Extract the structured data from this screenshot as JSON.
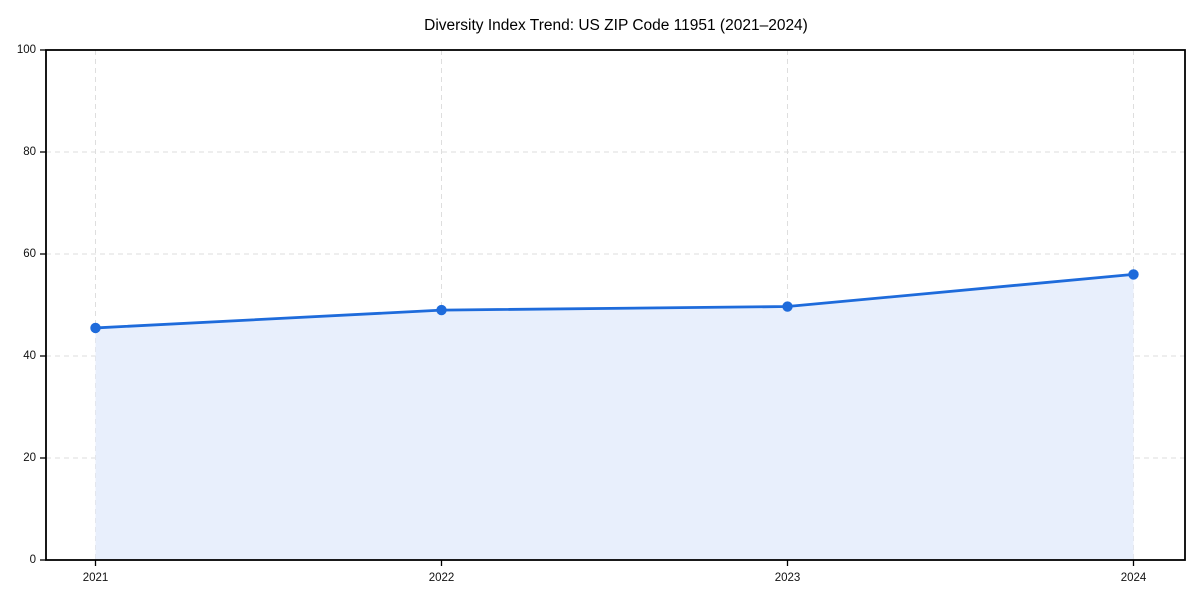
{
  "figure": {
    "background": "#ffffff"
  },
  "chart_data": {
    "type": "area",
    "title": "Diversity Index Trend: US ZIP Code 11951 (2021–2024)",
    "x": [
      "2021",
      "2022",
      "2023",
      "2024"
    ],
    "series": [
      {
        "name": "Diversity Index",
        "values": [
          45.5,
          49.0,
          49.7,
          56.0
        ]
      }
    ],
    "xlabel": "",
    "ylabel": "",
    "ylim": [
      0,
      100
    ],
    "yticks": [
      0,
      20,
      40,
      60,
      80,
      100
    ],
    "grid": "dashed, both axes",
    "legend": "none",
    "marker": "circle",
    "colors": {
      "line": "#1e6bdb",
      "marker": "#1e6bdb",
      "area_fill": "#e8effc",
      "grid": "#dedede",
      "axis": "#000000",
      "text": "#111111",
      "background": "#ffffff"
    }
  }
}
